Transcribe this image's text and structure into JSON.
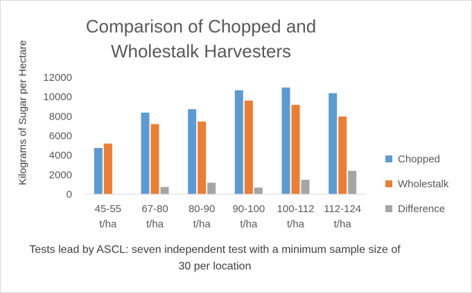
{
  "chart_data": {
    "type": "bar",
    "title": "Comparison of Chopped and Wholestalk Harvesters",
    "xlabel": "",
    "ylabel": "Kilograms of Sugar per Hectare",
    "ylim": [
      0,
      12000
    ],
    "yticks": [
      0,
      2000,
      4000,
      6000,
      8000,
      10000,
      12000
    ],
    "grid": false,
    "legend_position": "right",
    "categories": [
      [
        "45-55",
        "t/ha"
      ],
      [
        "67-80",
        "t/ha"
      ],
      [
        "80-90",
        "t/ha"
      ],
      [
        "90-100",
        "t/ha"
      ],
      [
        "100-112",
        "t/ha"
      ],
      [
        "112-124",
        "t/ha"
      ]
    ],
    "series": [
      {
        "name": "Chopped",
        "color": "#5b9bd5",
        "values": [
          4750,
          8380,
          8730,
          10680,
          10960,
          10380
        ]
      },
      {
        "name": "Wholestalk",
        "color": "#ed7d31",
        "values": [
          5200,
          7200,
          7460,
          9620,
          9180,
          7980
        ]
      },
      {
        "name": "Difference",
        "color": "#a5a5a5",
        "values": [
          0,
          740,
          1180,
          680,
          1480,
          2400
        ]
      }
    ],
    "caption": "Tests lead by ASCL: seven independent test with a minimum sample size of 30 per location"
  }
}
